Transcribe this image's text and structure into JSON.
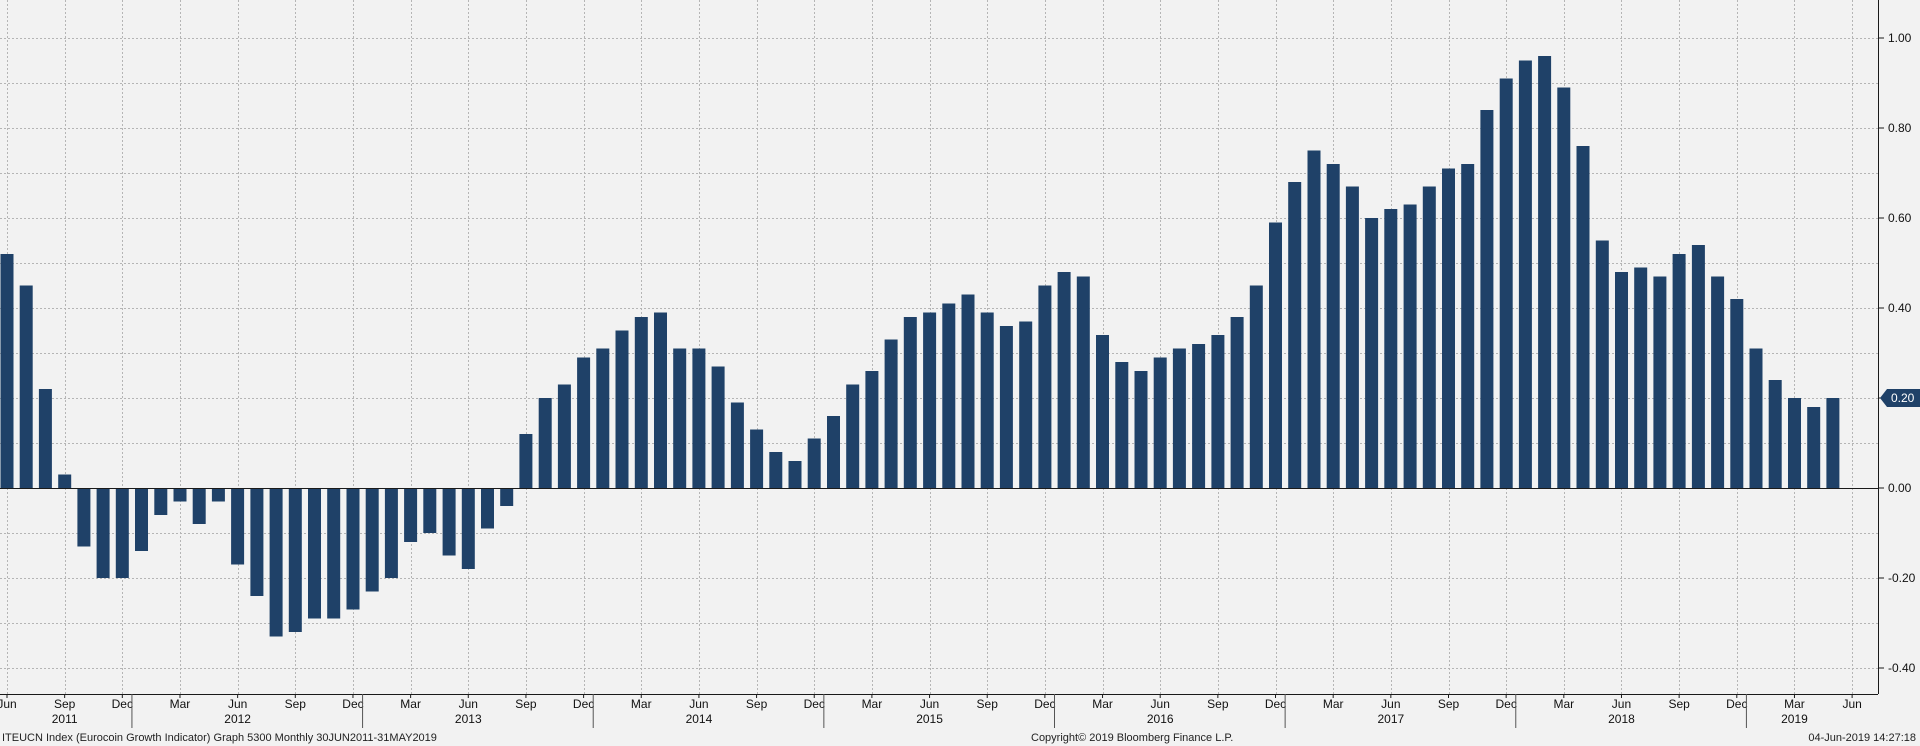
{
  "chart_data": {
    "type": "bar",
    "bar_color": "#1f4168",
    "background": "#f2f2f2",
    "grid": true,
    "ylim": [
      -0.46,
      1.06
    ],
    "y_ticks": [
      "1.00",
      "0.80",
      "0.60",
      "0.40",
      "0.20",
      "0.00",
      "-0.20",
      "-0.40"
    ],
    "y_tick_values": [
      1.0,
      0.8,
      0.6,
      0.4,
      0.2,
      0.0,
      -0.2,
      -0.4
    ],
    "last_value_label": "0.20",
    "last_value": 0.2,
    "month_ticks": [
      {
        "index": 0,
        "label": "Jun"
      },
      {
        "index": 3,
        "label": "Sep"
      },
      {
        "index": 6,
        "label": "Dec"
      },
      {
        "index": 9,
        "label": "Mar"
      },
      {
        "index": 12,
        "label": "Jun"
      },
      {
        "index": 15,
        "label": "Sep"
      },
      {
        "index": 18,
        "label": "Dec"
      },
      {
        "index": 21,
        "label": "Mar"
      },
      {
        "index": 24,
        "label": "Jun"
      },
      {
        "index": 27,
        "label": "Sep"
      },
      {
        "index": 30,
        "label": "Dec"
      },
      {
        "index": 33,
        "label": "Mar"
      },
      {
        "index": 36,
        "label": "Jun"
      },
      {
        "index": 39,
        "label": "Sep"
      },
      {
        "index": 42,
        "label": "Dec"
      },
      {
        "index": 45,
        "label": "Mar"
      },
      {
        "index": 48,
        "label": "Jun"
      },
      {
        "index": 51,
        "label": "Sep"
      },
      {
        "index": 54,
        "label": "Dec"
      },
      {
        "index": 57,
        "label": "Mar"
      },
      {
        "index": 60,
        "label": "Jun"
      },
      {
        "index": 63,
        "label": "Sep"
      },
      {
        "index": 66,
        "label": "Dec"
      },
      {
        "index": 69,
        "label": "Mar"
      },
      {
        "index": 72,
        "label": "Jun"
      },
      {
        "index": 75,
        "label": "Sep"
      },
      {
        "index": 78,
        "label": "Dec"
      },
      {
        "index": 81,
        "label": "Mar"
      },
      {
        "index": 84,
        "label": "Jun"
      },
      {
        "index": 87,
        "label": "Sep"
      },
      {
        "index": 90,
        "label": "Dec"
      },
      {
        "index": 93,
        "label": "Mar"
      },
      {
        "index": 96,
        "label": "Jun"
      }
    ],
    "year_labels": [
      {
        "center_index": 3,
        "label": "2011"
      },
      {
        "center_index": 12,
        "label": "2012"
      },
      {
        "center_index": 24,
        "label": "2013"
      },
      {
        "center_index": 36,
        "label": "2014"
      },
      {
        "center_index": 48,
        "label": "2015"
      },
      {
        "center_index": 60,
        "label": "2016"
      },
      {
        "center_index": 72,
        "label": "2017"
      },
      {
        "center_index": 84,
        "label": "2018"
      },
      {
        "center_index": 93,
        "label": "2019"
      }
    ],
    "year_separators": [
      6.5,
      18.5,
      30.5,
      42.5,
      54.5,
      66.5,
      78.5,
      90.5
    ],
    "dates": [
      "2011-06",
      "2011-07",
      "2011-08",
      "2011-09",
      "2011-10",
      "2011-11",
      "2011-12",
      "2012-01",
      "2012-02",
      "2012-03",
      "2012-04",
      "2012-05",
      "2012-06",
      "2012-07",
      "2012-08",
      "2012-09",
      "2012-10",
      "2012-11",
      "2012-12",
      "2013-01",
      "2013-02",
      "2013-03",
      "2013-04",
      "2013-05",
      "2013-06",
      "2013-07",
      "2013-08",
      "2013-09",
      "2013-10",
      "2013-11",
      "2013-12",
      "2014-01",
      "2014-02",
      "2014-03",
      "2014-04",
      "2014-05",
      "2014-06",
      "2014-07",
      "2014-08",
      "2014-09",
      "2014-10",
      "2014-11",
      "2014-12",
      "2015-01",
      "2015-02",
      "2015-03",
      "2015-04",
      "2015-05",
      "2015-06",
      "2015-07",
      "2015-08",
      "2015-09",
      "2015-10",
      "2015-11",
      "2015-12",
      "2016-01",
      "2016-02",
      "2016-03",
      "2016-04",
      "2016-05",
      "2016-06",
      "2016-07",
      "2016-08",
      "2016-09",
      "2016-10",
      "2016-11",
      "2016-12",
      "2017-01",
      "2017-02",
      "2017-03",
      "2017-04",
      "2017-05",
      "2017-06",
      "2017-07",
      "2017-08",
      "2017-09",
      "2017-10",
      "2017-11",
      "2017-12",
      "2018-01",
      "2018-02",
      "2018-03",
      "2018-04",
      "2018-05",
      "2018-06",
      "2018-07",
      "2018-08",
      "2018-09",
      "2018-10",
      "2018-11",
      "2018-12",
      "2019-01",
      "2019-02",
      "2019-03",
      "2019-04",
      "2019-05"
    ],
    "values": [
      0.52,
      0.45,
      0.22,
      0.03,
      -0.13,
      -0.2,
      -0.2,
      -0.14,
      -0.06,
      -0.03,
      -0.08,
      -0.03,
      -0.17,
      -0.24,
      -0.33,
      -0.32,
      -0.29,
      -0.29,
      -0.27,
      -0.23,
      -0.2,
      -0.12,
      -0.1,
      -0.15,
      -0.18,
      -0.09,
      -0.04,
      0.12,
      0.2,
      0.23,
      0.29,
      0.31,
      0.35,
      0.38,
      0.39,
      0.31,
      0.31,
      0.27,
      0.19,
      0.13,
      0.08,
      0.06,
      0.11,
      0.16,
      0.23,
      0.26,
      0.33,
      0.38,
      0.39,
      0.41,
      0.43,
      0.39,
      0.36,
      0.37,
      0.45,
      0.48,
      0.47,
      0.34,
      0.28,
      0.26,
      0.29,
      0.31,
      0.32,
      0.34,
      0.38,
      0.45,
      0.59,
      0.68,
      0.75,
      0.72,
      0.67,
      0.6,
      0.62,
      0.63,
      0.67,
      0.71,
      0.72,
      0.84,
      0.91,
      0.95,
      0.96,
      0.89,
      0.76,
      0.55,
      0.48,
      0.49,
      0.47,
      0.52,
      0.54,
      0.47,
      0.42,
      0.31,
      0.24,
      0.2,
      0.18,
      0.2
    ]
  },
  "footer": {
    "left": "ITEUCN Index (Eurocoin Growth Indicator) Graph 5300  Monthly 30JUN2011-31MAY2019",
    "center": "Copyright© 2019 Bloomberg Finance L.P.",
    "right": "04-Jun-2019 14:27:18"
  }
}
